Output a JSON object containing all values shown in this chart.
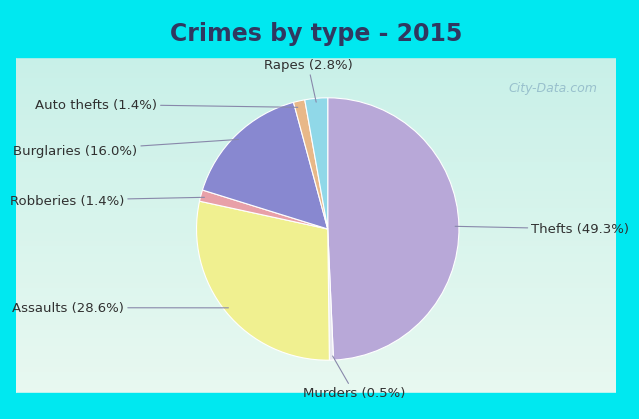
{
  "title": "Crimes by type - 2015",
  "slices": [
    {
      "label": "Thefts (49.3%)",
      "value": 49.3,
      "color": "#b8a8d8"
    },
    {
      "label": "Murders (0.5%)",
      "value": 0.5,
      "color": "#e8e8f0"
    },
    {
      "label": "Assaults (28.6%)",
      "value": 28.6,
      "color": "#f0f090"
    },
    {
      "label": "Robberies (1.4%)",
      "value": 1.4,
      "color": "#e8a0a8"
    },
    {
      "label": "Burglaries (16.0%)",
      "value": 16.0,
      "color": "#8888d0"
    },
    {
      "label": "Auto thefts (1.4%)",
      "value": 1.4,
      "color": "#e8b888"
    },
    {
      "label": "Rapes (2.8%)",
      "value": 2.8,
      "color": "#90d8e8"
    }
  ],
  "background_top_color": "#00e8f0",
  "background_bottom_color": "#d0f0e0",
  "title_color": "#303860",
  "title_fontsize": 17,
  "label_fontsize": 9.5,
  "watermark": "City-Data.com",
  "watermark_color": "#90b8c8"
}
